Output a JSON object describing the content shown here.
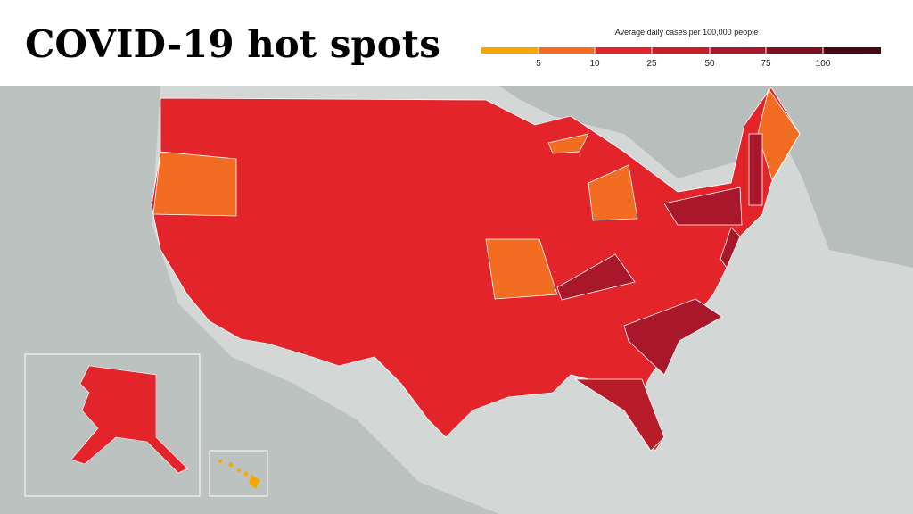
{
  "header": {
    "title": "COVID-19 hot spots"
  },
  "legend": {
    "title": "Average daily cases per 100,000 people",
    "ticks": [
      5,
      10,
      25,
      50,
      75,
      100
    ]
  }
}
